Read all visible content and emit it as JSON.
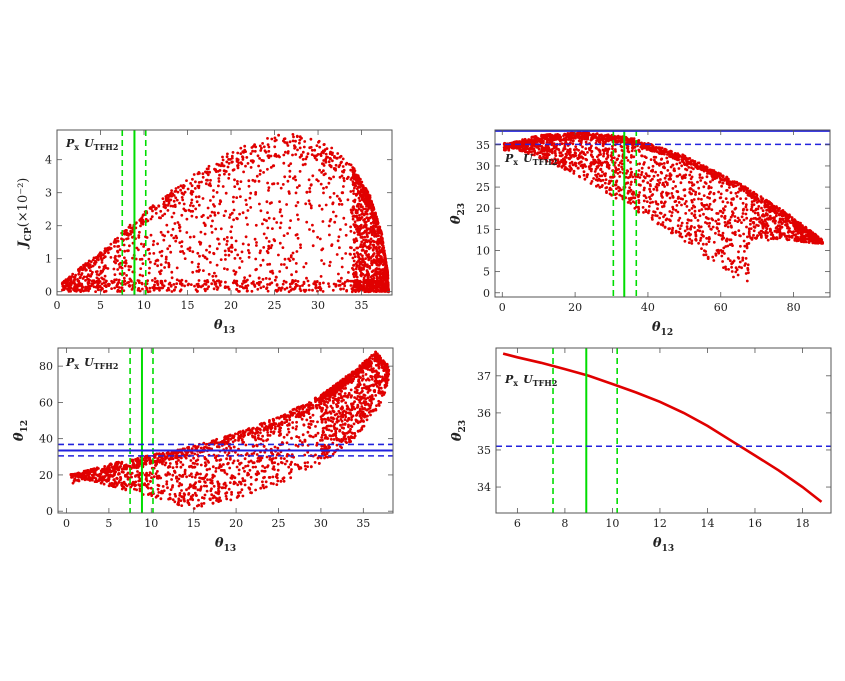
{
  "chart_data": [
    {
      "id": "p1",
      "type": "scatter",
      "annotation": {
        "main": "P",
        "main_sub": "x",
        "second": "U",
        "second_sub": "TFH2"
      },
      "xlabel": {
        "main": "θ",
        "sub": "13"
      },
      "ylabel": {
        "main": "J",
        "sub": "CP",
        "suffix": "(×10⁻²)"
      },
      "xlim": [
        0,
        38.5
      ],
      "ylim": [
        -0.1,
        4.9
      ],
      "xticks": [
        0,
        5,
        10,
        15,
        20,
        25,
        30,
        35
      ],
      "yticks": [
        0,
        1,
        2,
        3,
        4
      ],
      "region": "half-ellipse scatter: apex near x=26,y=4.8; left edge from x=0.5,y=0 rising; right edge curving down to x=38,y=0",
      "vlines": [
        {
          "value": 8.9,
          "style": "solid",
          "color": "#00dd00"
        },
        {
          "value": 7.5,
          "style": "dashed",
          "color": "#00dd00"
        },
        {
          "value": 10.2,
          "style": "dashed",
          "color": "#00dd00"
        }
      ],
      "hlines": [],
      "point_color": "#e00000"
    },
    {
      "id": "p2",
      "type": "scatter",
      "annotation": {
        "main": "P",
        "main_sub": "x",
        "second": "U",
        "second_sub": "TFH2"
      },
      "xlabel": {
        "main": "θ",
        "sub": "12"
      },
      "ylabel": {
        "main": "θ",
        "sub": "23"
      },
      "xlim": [
        -2,
        90
      ],
      "ylim": [
        -1,
        38.5
      ],
      "xticks": [
        0,
        20,
        40,
        60,
        80
      ],
      "yticks": [
        0,
        5,
        10,
        15,
        20,
        25,
        30,
        35
      ],
      "region": "curved band: upper edge from (0,35) through (25,38) down to (88,13); lower edge from (0,35) to (68,1)",
      "vlines": [
        {
          "value": 33.5,
          "style": "solid",
          "color": "#00dd00"
        },
        {
          "value": 30.5,
          "style": "dashed",
          "color": "#00dd00"
        },
        {
          "value": 36.8,
          "style": "dashed",
          "color": "#00dd00"
        }
      ],
      "hlines": [
        {
          "value": 38.3,
          "style": "solid",
          "color": "#2222dd"
        },
        {
          "value": 35.1,
          "style": "dashed",
          "color": "#2222dd"
        }
      ],
      "point_color": "#e00000"
    },
    {
      "id": "p3",
      "type": "scatter",
      "annotation": {
        "main": "P",
        "main_sub": "x",
        "second": "U",
        "second_sub": "TFH2"
      },
      "xlabel": {
        "main": "θ",
        "sub": "13"
      },
      "ylabel": {
        "main": "θ",
        "sub": "12"
      },
      "xlim": [
        -1,
        38.5
      ],
      "ylim": [
        -1,
        90
      ],
      "xticks": [
        0,
        5,
        10,
        15,
        20,
        25,
        30,
        35
      ],
      "yticks": [
        0,
        20,
        40,
        60,
        80
      ],
      "region": "crescent: upper edge from (0.5,20) to (36,88); lower edge from (0.5,20) down to (15,1) then up to (38,72)",
      "vlines": [
        {
          "value": 8.9,
          "style": "solid",
          "color": "#00dd00"
        },
        {
          "value": 7.5,
          "style": "dashed",
          "color": "#00dd00"
        },
        {
          "value": 10.2,
          "style": "dashed",
          "color": "#00dd00"
        }
      ],
      "hlines": [
        {
          "value": 33.5,
          "style": "solid",
          "color": "#2222dd"
        },
        {
          "value": 30.5,
          "style": "dashed",
          "color": "#2222dd"
        },
        {
          "value": 36.8,
          "style": "dashed",
          "color": "#2222dd"
        }
      ],
      "point_color": "#e00000"
    },
    {
      "id": "p4",
      "type": "line",
      "annotation": {
        "main": "P",
        "main_sub": "x",
        "second": "U",
        "second_sub": "TFH2"
      },
      "xlabel": {
        "main": "θ",
        "sub": "13"
      },
      "ylabel": {
        "main": "θ",
        "sub": "23"
      },
      "xlim": [
        5.1,
        19.2
      ],
      "ylim": [
        33.3,
        37.75
      ],
      "xticks": [
        6,
        8,
        10,
        12,
        14,
        16,
        18
      ],
      "yticks": [
        34,
        35,
        36,
        37
      ],
      "series": [
        {
          "color": "#e00000",
          "x": [
            5.4,
            6,
            7,
            8,
            9,
            10,
            11,
            12,
            13,
            14,
            15,
            16,
            17,
            18,
            18.8
          ],
          "y": [
            37.6,
            37.5,
            37.35,
            37.18,
            37.0,
            36.78,
            36.55,
            36.3,
            36.0,
            35.65,
            35.25,
            34.85,
            34.45,
            34.0,
            33.6
          ]
        }
      ],
      "vlines": [
        {
          "value": 8.9,
          "style": "solid",
          "color": "#00dd00"
        },
        {
          "value": 7.5,
          "style": "dashed",
          "color": "#00dd00"
        },
        {
          "value": 10.2,
          "style": "dashed",
          "color": "#00dd00"
        }
      ],
      "hlines": [
        {
          "value": 35.1,
          "style": "dashed",
          "color": "#2222dd"
        }
      ]
    }
  ]
}
